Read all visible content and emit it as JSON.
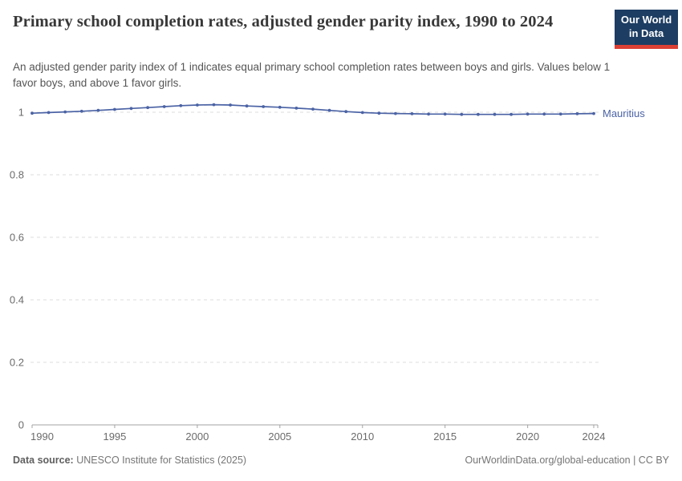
{
  "header": {
    "title": "Primary school completion rates, adjusted gender parity index, 1990 to 2024",
    "subtitle": "An adjusted gender parity index of 1 indicates equal primary school completion rates between boys and girls. Values below 1 favor boys, and above 1 favor girls.",
    "logo": {
      "line1": "Our World",
      "line2": "in Data"
    }
  },
  "chart_data": {
    "type": "line",
    "title": "Primary school completion rates, adjusted gender parity index, 1990 to 2024",
    "xlabel": "",
    "ylabel": "",
    "xlim": [
      1990,
      2024
    ],
    "ylim": [
      0,
      1.05
    ],
    "x_ticks": [
      1990,
      1995,
      2000,
      2005,
      2010,
      2015,
      2020,
      2024
    ],
    "y_ticks": [
      0,
      0.2,
      0.4,
      0.6,
      0.8,
      1
    ],
    "grid": "horizontal-dashed",
    "legend_position": "end-of-line-label",
    "series": [
      {
        "name": "Mauritius",
        "color": "#4b63a5",
        "x": [
          1990,
          1991,
          1992,
          1993,
          1994,
          1995,
          1996,
          1997,
          1998,
          1999,
          2000,
          2001,
          2002,
          2003,
          2004,
          2005,
          2006,
          2007,
          2008,
          2009,
          2010,
          2011,
          2012,
          2013,
          2014,
          2015,
          2016,
          2017,
          2018,
          2019,
          2020,
          2021,
          2022,
          2023,
          2024
        ],
        "values": [
          0.997,
          0.999,
          1.001,
          1.003,
          1.006,
          1.009,
          1.012,
          1.015,
          1.018,
          1.021,
          1.023,
          1.024,
          1.023,
          1.02,
          1.018,
          1.016,
          1.013,
          1.01,
          1.006,
          1.002,
          0.999,
          0.997,
          0.996,
          0.995,
          0.994,
          0.994,
          0.993,
          0.993,
          0.993,
          0.993,
          0.994,
          0.994,
          0.994,
          0.995,
          0.996
        ]
      }
    ]
  },
  "footer": {
    "datasource_label": "Data source:",
    "datasource_value": "UNESCO Institute for Statistics (2025)",
    "rights": "OurWorldinData.org/global-education | CC BY"
  },
  "colors": {
    "line": "#4b63a5",
    "grid": "#dcdcdc",
    "axis": "#a3a3a3",
    "tick_text": "#6b6b6b",
    "title_text": "#383838",
    "subtitle_text": "#555555",
    "logo_bg": "#1d3d63",
    "logo_accent": "#dc3f34"
  }
}
